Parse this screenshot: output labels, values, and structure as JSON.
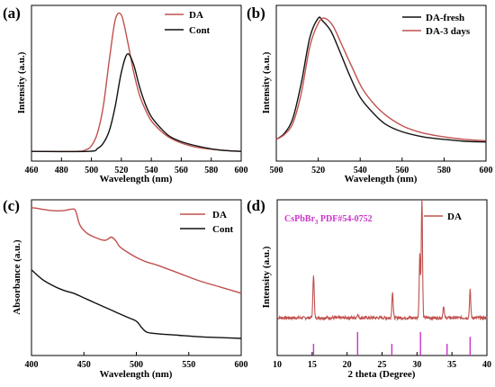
{
  "colors": {
    "series_a": "#c0504d",
    "series_b": "#111111",
    "inset": "#cc33cc"
  },
  "chart_data": [
    {
      "panel": "(a)",
      "type": "line",
      "xlabel": "Wavelength (nm)",
      "ylabel": "Intensity (a.u.)",
      "xlim": [
        460,
        600
      ],
      "xticks": [
        "460",
        "480",
        "500",
        "520",
        "540",
        "560",
        "580",
        "600"
      ],
      "legend_position": "top-right",
      "series": [
        {
          "name": "DA",
          "color": "#c0504d",
          "x": [
            460,
            490,
            496,
            500,
            504,
            508,
            512,
            516,
            520,
            524,
            528,
            532,
            536,
            540,
            546,
            552,
            560,
            570,
            585,
            600
          ],
          "y": [
            0.0,
            0.0,
            0.01,
            0.04,
            0.13,
            0.33,
            0.66,
            0.95,
            0.98,
            0.8,
            0.58,
            0.41,
            0.3,
            0.22,
            0.15,
            0.1,
            0.06,
            0.03,
            0.01,
            0.0
          ]
        },
        {
          "name": "Cont",
          "color": "#111111",
          "x": [
            460,
            498,
            504,
            508,
            512,
            516,
            520,
            524,
            528,
            532,
            536,
            540,
            546,
            552,
            560,
            570,
            585,
            600
          ],
          "y": [
            0.0,
            0.0,
            0.02,
            0.06,
            0.15,
            0.33,
            0.57,
            0.7,
            0.63,
            0.47,
            0.34,
            0.25,
            0.17,
            0.11,
            0.07,
            0.04,
            0.01,
            0.0
          ]
        }
      ]
    },
    {
      "panel": "(b)",
      "type": "line",
      "xlabel": "Wavelength (nm)",
      "ylabel": "Intensity (a.u.)",
      "xlim": [
        500,
        600
      ],
      "xticks": [
        "500",
        "520",
        "540",
        "560",
        "580",
        "600"
      ],
      "legend_position": "top-right",
      "series": [
        {
          "name": "DA-fresh",
          "color": "#111111",
          "x": [
            500,
            504,
            508,
            512,
            516,
            520,
            522,
            526,
            530,
            535,
            540,
            546,
            552,
            560,
            570,
            580,
            590,
            600
          ],
          "y": [
            0.05,
            0.1,
            0.22,
            0.5,
            0.85,
            1.0,
            0.98,
            0.9,
            0.75,
            0.55,
            0.38,
            0.26,
            0.17,
            0.11,
            0.07,
            0.05,
            0.035,
            0.03
          ]
        },
        {
          "name": "DA-3 days",
          "color": "#c0504d",
          "x": [
            500,
            504,
            508,
            512,
            516,
            520,
            523,
            527,
            531,
            536,
            541,
            547,
            553,
            561,
            570,
            580,
            590,
            600
          ],
          "y": [
            0.05,
            0.09,
            0.18,
            0.42,
            0.78,
            0.96,
            1.0,
            0.94,
            0.8,
            0.62,
            0.45,
            0.32,
            0.23,
            0.15,
            0.1,
            0.07,
            0.05,
            0.04
          ]
        }
      ]
    },
    {
      "panel": "(c)",
      "type": "line",
      "xlabel": "Wavelength (nm)",
      "ylabel": "Absorbance (a.u.)",
      "xlim": [
        400,
        600
      ],
      "xticks": [
        "400",
        "450",
        "500",
        "550",
        "600"
      ],
      "legend_position": "top-right",
      "series": [
        {
          "name": "DA",
          "color": "#c0504d",
          "x": [
            400,
            410,
            420,
            430,
            438,
            442,
            446,
            452,
            460,
            470,
            476,
            480,
            484,
            490,
            500,
            510,
            520,
            540,
            560,
            580,
            600
          ],
          "y": [
            0.95,
            0.94,
            0.93,
            0.93,
            0.94,
            0.93,
            0.84,
            0.79,
            0.76,
            0.74,
            0.76,
            0.74,
            0.7,
            0.67,
            0.63,
            0.6,
            0.58,
            0.53,
            0.48,
            0.44,
            0.4
          ]
        },
        {
          "name": "Cont",
          "color": "#111111",
          "x": [
            400,
            410,
            420,
            430,
            440,
            450,
            460,
            470,
            480,
            490,
            500,
            505,
            510,
            520,
            540,
            560,
            580,
            600
          ],
          "y": [
            0.55,
            0.49,
            0.45,
            0.42,
            0.4,
            0.37,
            0.34,
            0.31,
            0.28,
            0.25,
            0.22,
            0.18,
            0.15,
            0.14,
            0.13,
            0.12,
            0.115,
            0.11
          ]
        }
      ]
    },
    {
      "panel": "(d)",
      "type": "line",
      "xlabel": "2 theta (Degree)",
      "ylabel": "Intensity (a.u.)",
      "xlim": [
        10,
        40
      ],
      "xticks": [
        "10",
        "15",
        "20",
        "25",
        "30",
        "35",
        "40"
      ],
      "legend_position": "top-right",
      "inset_text": "CsPbBr",
      "inset_sub": "3",
      "inset_rest": " PDF#54-0752",
      "reference_lines": [
        15.2,
        21.5,
        26.4,
        30.5,
        34.3,
        37.6
      ],
      "reference_heights": [
        0.5,
        1.0,
        0.5,
        1.0,
        0.5,
        0.8
      ],
      "series": [
        {
          "name": "DA",
          "color": "#c0504d",
          "peaks": [
            [
              15.2,
              0.36
            ],
            [
              21.5,
              0.03
            ],
            [
              26.5,
              0.22
            ],
            [
              30.4,
              0.52
            ],
            [
              30.7,
              0.98
            ],
            [
              33.8,
              0.1
            ],
            [
              37.6,
              0.23
            ]
          ],
          "baseline": 0.06
        }
      ]
    }
  ],
  "panels": {
    "a": {
      "label": "(a)",
      "legend": [
        "DA",
        "Cont"
      ]
    },
    "b": {
      "label": "(b)",
      "legend": [
        "DA-fresh",
        "DA-3 days"
      ]
    },
    "c": {
      "label": "(c)",
      "legend": [
        "DA",
        "Cont"
      ]
    },
    "d": {
      "label": "(d)",
      "legend": [
        "DA"
      ]
    }
  }
}
